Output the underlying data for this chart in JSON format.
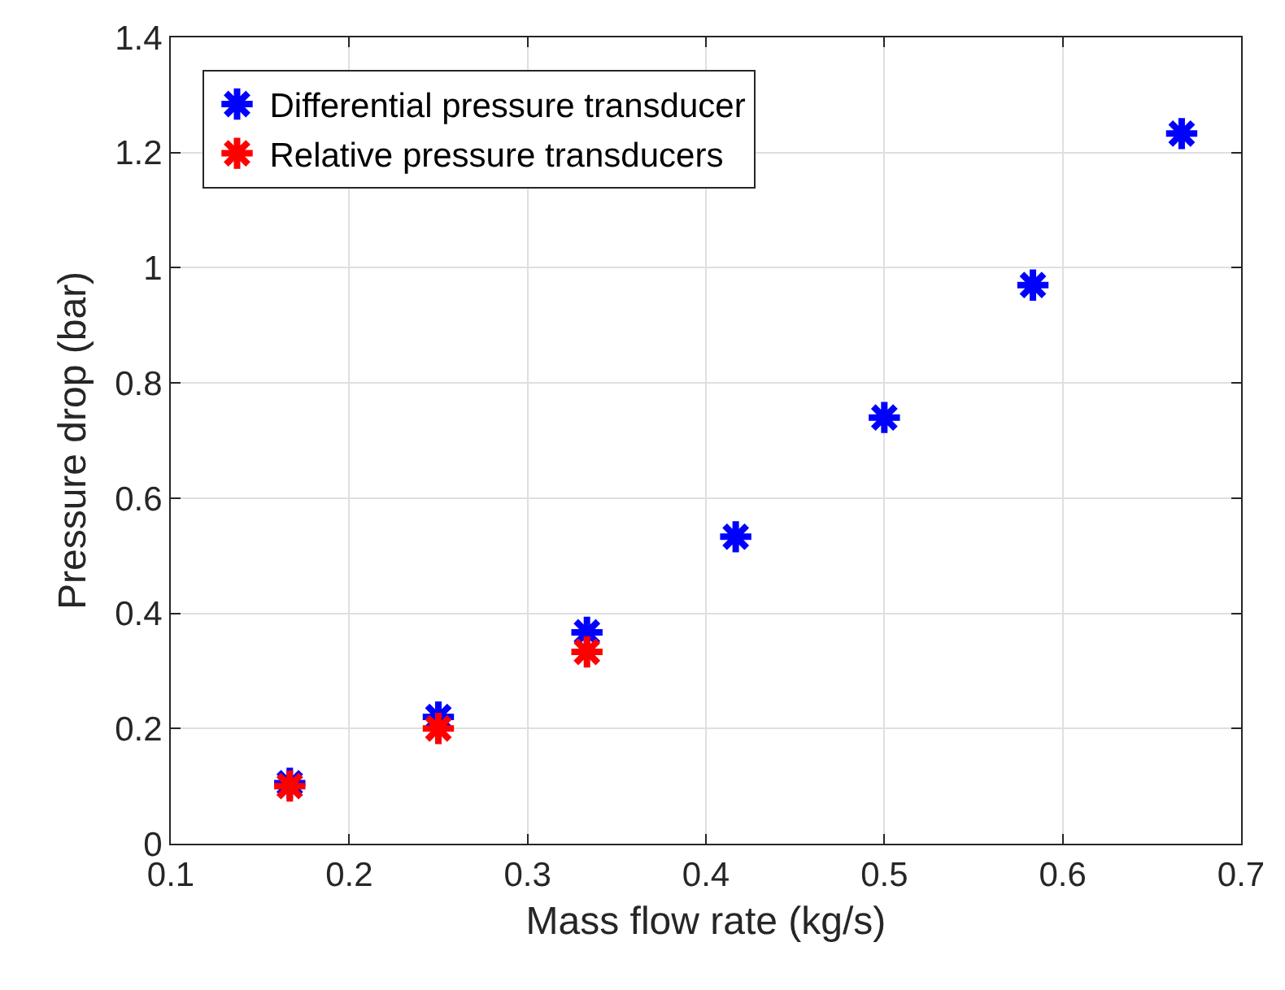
{
  "chart_data": {
    "type": "scatter",
    "xlabel": "Mass flow rate (kg/s)",
    "ylabel": "Pressure drop (bar)",
    "xlim": [
      0.1,
      0.7
    ],
    "xticks": [
      0.1,
      0.2,
      0.3,
      0.4,
      0.5,
      0.6,
      0.7
    ],
    "ylim": [
      0,
      1.4
    ],
    "yticks": [
      0,
      0.2,
      0.4,
      0.6,
      0.8,
      1,
      1.2,
      1.4
    ],
    "grid": true,
    "legend": "top left",
    "marker": "cross",
    "series": [
      {
        "name": "Differential pressure transducer",
        "color": "#0000ff",
        "x": [
          0.1667,
          0.25,
          0.3333,
          0.4167,
          0.5,
          0.5833,
          0.6667
        ],
        "values": [
          0.105,
          0.22,
          0.367,
          0.533,
          0.74,
          0.97,
          1.233
        ]
      },
      {
        "name": "Relative pressure transducers",
        "color": "#ff0000",
        "x": [
          0.1667,
          0.25,
          0.3333
        ],
        "values": [
          0.1,
          0.2,
          0.333
        ]
      }
    ]
  }
}
